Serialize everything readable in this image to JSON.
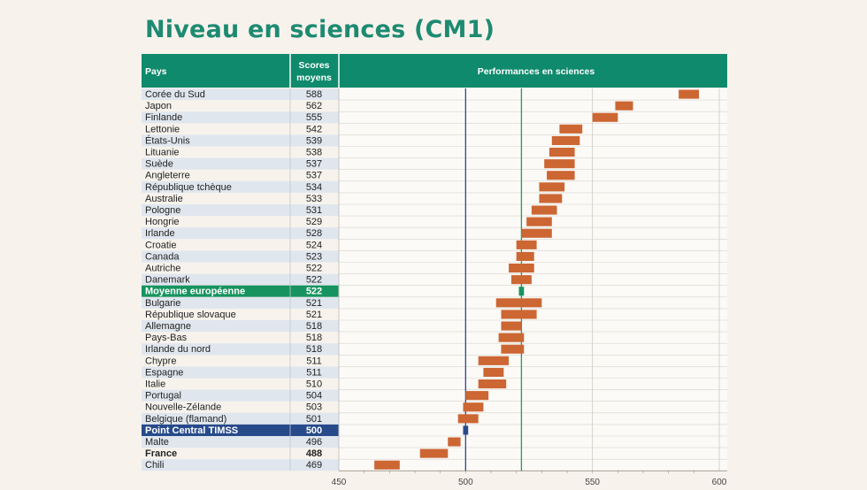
{
  "title": "Niveau en sciences (CM1)",
  "colors": {
    "header_bg": "#0f8a6c",
    "row_alt": "#dfe6ee",
    "bar": "#cc6633",
    "europe_row": "#17935f",
    "timss_row": "#274a8a",
    "europe_line": "#1f9c5f",
    "timss_line": "#2b4a8d"
  },
  "chart_data": {
    "type": "bar",
    "orientation": "horizontal",
    "title": "Niveau en sciences (CM1)",
    "columns": [
      "Pays",
      "Scores moyens",
      "Performances en sciences"
    ],
    "xlim": [
      450,
      600
    ],
    "xticks": [
      "450",
      "500",
      "550",
      "600"
    ],
    "reference_lines": [
      {
        "label": "Moyenne européenne",
        "value": 522
      },
      {
        "label": "Point Central TIMSS",
        "value": 500
      }
    ],
    "rows": [
      {
        "country": "Corée du Sud",
        "score": "588",
        "low": 584,
        "high": 592
      },
      {
        "country": "Japon",
        "score": "562",
        "low": 559,
        "high": 566
      },
      {
        "country": "Finlande",
        "score": "555",
        "low": 550,
        "high": 560
      },
      {
        "country": "Lettonie",
        "score": "542",
        "low": 537,
        "high": 546
      },
      {
        "country": "États-Unis",
        "score": "539",
        "low": 534,
        "high": 545
      },
      {
        "country": "Lituanie",
        "score": "538",
        "low": 533,
        "high": 543
      },
      {
        "country": "Suède",
        "score": "537",
        "low": 531,
        "high": 543
      },
      {
        "country": "Angleterre",
        "score": "537",
        "low": 532,
        "high": 543
      },
      {
        "country": "République tchèque",
        "score": "534",
        "low": 529,
        "high": 539
      },
      {
        "country": "Australie",
        "score": "533",
        "low": 529,
        "high": 538
      },
      {
        "country": "Pologne",
        "score": "531",
        "low": 526,
        "high": 536
      },
      {
        "country": "Hongrie",
        "score": "529",
        "low": 524,
        "high": 534
      },
      {
        "country": "Irlande",
        "score": "528",
        "low": 522,
        "high": 534
      },
      {
        "country": "Croatie",
        "score": "524",
        "low": 520,
        "high": 528
      },
      {
        "country": "Canada",
        "score": "523",
        "low": 520,
        "high": 527
      },
      {
        "country": "Autriche",
        "score": "522",
        "low": 517,
        "high": 527
      },
      {
        "country": "Danemark",
        "score": "522",
        "low": 518,
        "high": 526
      },
      {
        "country": "Moyenne européenne",
        "score": "522",
        "low": 521,
        "high": 523,
        "highlight": "europe"
      },
      {
        "country": "Bulgarie",
        "score": "521",
        "low": 512,
        "high": 530
      },
      {
        "country": "République slovaque",
        "score": "521",
        "low": 514,
        "high": 528
      },
      {
        "country": "Allemagne",
        "score": "518",
        "low": 514,
        "high": 522
      },
      {
        "country": "Pays-Bas",
        "score": "518",
        "low": 513,
        "high": 523
      },
      {
        "country": "Irlande du nord",
        "score": "518",
        "low": 514,
        "high": 523
      },
      {
        "country": "Chypre",
        "score": "511",
        "low": 505,
        "high": 517
      },
      {
        "country": "Espagne",
        "score": "511",
        "low": 507,
        "high": 515
      },
      {
        "country": "Italie",
        "score": "510",
        "low": 505,
        "high": 516
      },
      {
        "country": "Portugal",
        "score": "504",
        "low": 500,
        "high": 509
      },
      {
        "country": "Nouvelle-Zélande",
        "score": "503",
        "low": 499,
        "high": 507
      },
      {
        "country": "Belgique (flamand)",
        "score": "501",
        "low": 497,
        "high": 505
      },
      {
        "country": "Point Central TIMSS",
        "score": "500",
        "low": 499,
        "high": 501,
        "highlight": "timss"
      },
      {
        "country": "Malte",
        "score": "496",
        "low": 493,
        "high": 498
      },
      {
        "country": "France",
        "score": "488",
        "low": 482,
        "high": 493,
        "bold": true
      },
      {
        "country": "Chili",
        "score": "469",
        "low": 464,
        "high": 474
      }
    ]
  }
}
